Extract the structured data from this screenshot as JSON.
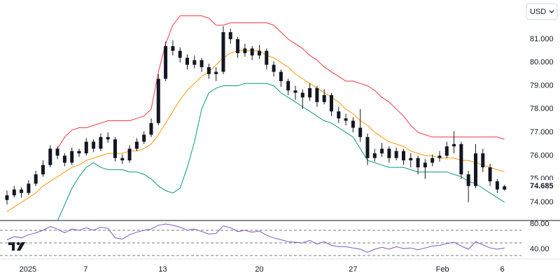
{
  "currency": "USD",
  "chart_data": {
    "type": "candlestick",
    "x": [
      0,
      1,
      2,
      3,
      4,
      5,
      6,
      7,
      8,
      9,
      10,
      11,
      12,
      13,
      14,
      15,
      16,
      17,
      18,
      19,
      20,
      21,
      22,
      23,
      24,
      25,
      26,
      27,
      28,
      29,
      30,
      31,
      32,
      33,
      34,
      35,
      36,
      37,
      38,
      39,
      40,
      41,
      42,
      43,
      44,
      45,
      46,
      47,
      48,
      49,
      50,
      51,
      52,
      53,
      54,
      55,
      56,
      57,
      58,
      59,
      60,
      61,
      62,
      63,
      64,
      65,
      66,
      67,
      68,
      69
    ],
    "open": [
      74.1,
      74.3,
      74.55,
      74.4,
      74.8,
      75.2,
      75.6,
      76.3,
      76.0,
      75.7,
      76.2,
      76.1,
      76.6,
      76.3,
      76.8,
      76.7,
      75.9,
      75.8,
      76.3,
      76.6,
      76.9,
      77.4,
      79.3,
      80.7,
      80.5,
      80.2,
      79.9,
      80.1,
      79.8,
      79.5,
      79.6,
      81.3,
      81.0,
      80.4,
      80.6,
      80.3,
      80.5,
      79.9,
      79.6,
      79.2,
      78.8,
      78.7,
      78.5,
      78.9,
      78.3,
      78.6,
      77.9,
      77.6,
      77.5,
      77.2,
      76.8,
      75.9,
      76.1,
      76.3,
      75.9,
      76.2,
      75.8,
      75.9,
      75.5,
      75.7,
      75.9,
      76.0,
      76.4,
      76.5,
      75.2,
      74.7,
      76.1,
      75.5,
      74.9,
      74.55
    ],
    "high": [
      74.5,
      74.7,
      74.65,
      74.95,
      75.35,
      75.8,
      76.45,
      76.4,
      76.1,
      76.35,
      76.3,
      76.75,
      76.7,
      76.95,
      77.0,
      76.8,
      76.05,
      76.45,
      76.75,
      77.05,
      77.6,
      79.5,
      80.9,
      80.95,
      80.65,
      80.35,
      80.3,
      80.2,
      79.95,
      79.8,
      81.55,
      81.45,
      81.1,
      80.8,
      80.7,
      80.75,
      80.6,
      80.05,
      79.7,
      79.3,
      79.0,
      78.85,
      79.1,
      79.0,
      78.85,
      78.7,
      78.1,
      77.8,
      77.65,
      78.0,
      76.95,
      76.3,
      76.55,
      76.4,
      76.35,
      76.3,
      76.1,
      76.0,
      75.85,
      76.05,
      76.2,
      76.6,
      77.05,
      76.6,
      75.35,
      76.5,
      76.3,
      75.65,
      75.0,
      74.75
    ],
    "low": [
      73.9,
      74.2,
      74.2,
      74.3,
      74.7,
      75.1,
      75.5,
      75.85,
      75.55,
      75.6,
      75.95,
      76.0,
      76.15,
      76.2,
      76.55,
      75.75,
      75.65,
      75.7,
      76.2,
      76.5,
      76.8,
      77.3,
      79.2,
      80.3,
      80.0,
      79.7,
      79.75,
      79.6,
      79.3,
      79.2,
      79.5,
      80.8,
      80.2,
      80.25,
      80.1,
      80.15,
      79.7,
      79.4,
      78.95,
      78.6,
      78.4,
      78.0,
      78.35,
      78.1,
      78.2,
      77.7,
      77.4,
      77.3,
      77.0,
      76.6,
      75.6,
      75.75,
      75.95,
      75.7,
      75.8,
      75.6,
      75.5,
      75.2,
      75.0,
      75.55,
      75.75,
      75.9,
      76.1,
      75.0,
      74.0,
      74.6,
      75.3,
      74.7,
      74.4,
      74.5
    ],
    "close": [
      74.3,
      74.55,
      74.4,
      74.8,
      75.2,
      75.6,
      76.3,
      76.0,
      75.7,
      76.2,
      76.1,
      76.6,
      76.3,
      76.8,
      76.7,
      75.9,
      75.8,
      76.3,
      76.6,
      76.9,
      77.4,
      79.3,
      80.7,
      80.5,
      80.2,
      79.9,
      80.1,
      79.8,
      79.5,
      79.6,
      81.3,
      81.0,
      80.4,
      80.6,
      80.3,
      80.5,
      79.9,
      79.6,
      79.2,
      78.8,
      78.7,
      78.5,
      78.9,
      78.3,
      78.6,
      77.9,
      77.6,
      77.5,
      77.2,
      76.8,
      75.9,
      76.1,
      76.3,
      75.9,
      76.2,
      75.8,
      75.9,
      75.5,
      75.7,
      75.9,
      76.0,
      76.4,
      76.5,
      75.2,
      74.7,
      76.1,
      75.5,
      74.9,
      74.55,
      74.685
    ],
    "candle_color": "#131722",
    "xlim": [
      -0.97,
      71.36
    ],
    "xticks": [
      {
        "value": 2.9,
        "label": "2025"
      },
      {
        "value": 10.9,
        "label": "7"
      },
      {
        "value": 21.6,
        "label": "13"
      },
      {
        "value": 35,
        "label": "20"
      },
      {
        "value": 48,
        "label": "27"
      },
      {
        "value": 60.4,
        "label": "Feb"
      },
      {
        "value": 68.7,
        "label": "6"
      }
    ],
    "ylim": [
      73.22,
      82.68
    ],
    "yticks": [
      {
        "value": 74,
        "label": "74.000"
      },
      {
        "value": 75,
        "label": "75.000"
      },
      {
        "value": 76,
        "label": "76.000"
      },
      {
        "value": 77,
        "label": "77.000"
      },
      {
        "value": 78,
        "label": "78.000"
      },
      {
        "value": 79,
        "label": "79.000"
      },
      {
        "value": 80,
        "label": "80.000"
      },
      {
        "value": 81,
        "label": "81.000"
      }
    ],
    "last_price": 74.685,
    "overlays": [
      {
        "color": "#f23645",
        "values": [
          null,
          null,
          null,
          null,
          null,
          null,
          null,
          76.3,
          76.8,
          77.1,
          77.2,
          77.2,
          77.3,
          77.4,
          77.5,
          77.5,
          77.5,
          77.5,
          77.6,
          77.7,
          78.0,
          79.6,
          80.8,
          81.6,
          82.0,
          82.0,
          82.0,
          82.0,
          81.9,
          81.6,
          81.6,
          81.7,
          81.7,
          81.7,
          81.7,
          81.7,
          81.7,
          81.6,
          81.3,
          81.0,
          80.8,
          80.6,
          80.3,
          80.1,
          79.8,
          79.6,
          79.4,
          79.2,
          79.2,
          79.1,
          79.0,
          78.8,
          78.5,
          78.3,
          78.0,
          77.7,
          77.3,
          77.0,
          76.9,
          76.8,
          76.8,
          76.8,
          76.8,
          76.8,
          76.8,
          76.8,
          76.8,
          76.8,
          76.8,
          76.7
        ]
      },
      {
        "color": "#ff9800",
        "values": [
          73.6,
          73.8,
          74.0,
          74.2,
          74.4,
          74.7,
          74.9,
          75.1,
          75.3,
          75.5,
          75.6,
          75.8,
          75.9,
          76.0,
          76.1,
          76.1,
          76.1,
          76.2,
          76.2,
          76.3,
          76.5,
          76.9,
          77.4,
          77.9,
          78.4,
          78.8,
          79.1,
          79.4,
          79.6,
          79.9,
          80.2,
          80.4,
          80.5,
          80.5,
          80.5,
          80.5,
          80.3,
          80.2,
          80.0,
          79.8,
          79.5,
          79.3,
          79.1,
          78.9,
          78.7,
          78.5,
          78.3,
          78.0,
          77.8,
          77.5,
          77.3,
          77.0,
          76.8,
          76.6,
          76.5,
          76.4,
          76.2,
          76.1,
          76.0,
          76.0,
          75.9,
          75.9,
          75.9,
          75.8,
          75.8,
          75.7,
          75.6,
          75.5,
          75.4,
          75.3
        ]
      },
      {
        "color": "#089981",
        "values": [
          null,
          null,
          null,
          null,
          null,
          null,
          null,
          73.2,
          73.9,
          74.6,
          75.1,
          75.5,
          75.7,
          75.5,
          75.4,
          75.4,
          75.4,
          75.3,
          75.3,
          75.2,
          75.0,
          74.7,
          74.5,
          74.4,
          74.6,
          75.5,
          76.6,
          78.0,
          78.7,
          78.9,
          79.0,
          79.0,
          79.0,
          79.1,
          79.1,
          79.1,
          79.1,
          79.0,
          78.7,
          78.5,
          78.3,
          78.1,
          77.9,
          77.7,
          77.5,
          77.4,
          77.2,
          77.0,
          76.8,
          76.3,
          75.8,
          75.7,
          75.6,
          75.5,
          75.5,
          75.5,
          75.4,
          75.3,
          75.3,
          75.3,
          75.3,
          75.3,
          75.2,
          75.1,
          74.9,
          74.8,
          74.6,
          74.4,
          74.2,
          74.0
        ]
      }
    ],
    "rsi": {
      "color": "#7e57c2",
      "values": [
        55,
        60,
        58,
        63,
        66,
        70,
        76,
        72,
        66,
        72,
        70,
        74,
        70,
        75,
        73,
        58,
        56,
        63,
        67,
        70,
        72,
        78,
        80,
        78,
        75,
        70,
        72,
        68,
        64,
        65,
        77,
        74,
        68,
        70,
        67,
        69,
        62,
        58,
        55,
        52,
        51,
        50,
        54,
        48,
        52,
        46,
        44,
        44,
        42,
        40,
        35,
        40,
        43,
        40,
        44,
        41,
        42,
        39,
        42,
        45,
        46,
        49,
        51,
        45,
        40,
        52,
        47,
        42,
        40,
        42
      ],
      "ylim": [
        24.4,
        84.4
      ],
      "yticks": [
        {
          "value": 80,
          "label": "80.00"
        },
        {
          "value": 40,
          "label": "40.00"
        }
      ],
      "levels": [
        70,
        50,
        30
      ]
    }
  }
}
